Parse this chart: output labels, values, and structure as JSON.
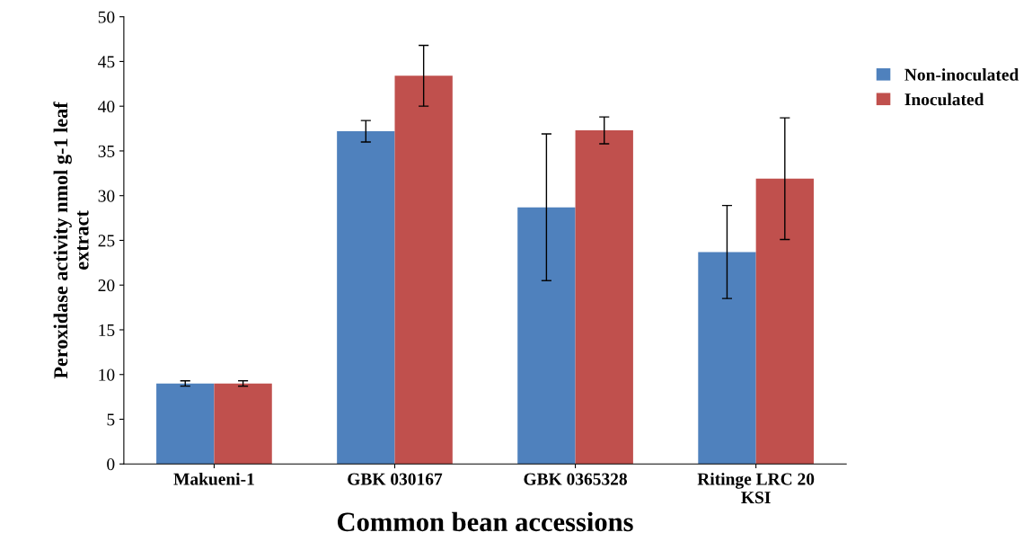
{
  "chart_data": {
    "type": "bar",
    "xlabel": "Common bean accessions",
    "ylabel": "Peroxidase activity nmol g-1 leaf\nextract",
    "categories": [
      "Makueni-1",
      "GBK 030167",
      "GBK 0365328",
      "Ritinge LRC 20\nKSI"
    ],
    "series": [
      {
        "name": "Non-inoculated",
        "color": "#4f81bd",
        "values": [
          9.0,
          37.2,
          28.7,
          23.7
        ],
        "errors": [
          0.3,
          1.2,
          8.2,
          5.2
        ]
      },
      {
        "name": "Inoculated",
        "color": "#c0504d",
        "values": [
          9.0,
          43.4,
          37.3,
          31.9
        ],
        "errors": [
          0.3,
          3.4,
          1.5,
          6.8
        ]
      }
    ],
    "ylim": [
      0,
      50
    ],
    "yticks": [
      0,
      5,
      10,
      15,
      20,
      25,
      30,
      35,
      40,
      45,
      50
    ],
    "grid": false,
    "legend": "top right"
  }
}
